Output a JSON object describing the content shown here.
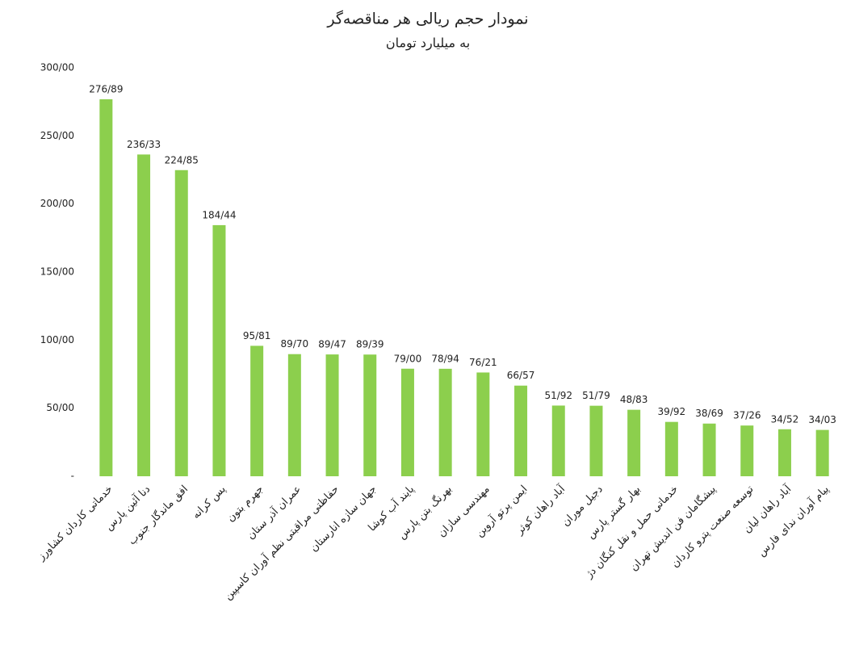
{
  "chart_data": {
    "type": "bar",
    "title": "نمودار حجم ریالی هر مناقصه‌گر",
    "subtitle": "به میلیارد تومان",
    "categories": [
      "خدماتی کاردان کشاورز",
      "دنا آئین پارس",
      "افق ماندگار جنوب",
      "پس کرانه",
      "جهرم بتون",
      "عمران آذر ستان",
      "حفاظتی مراقبتی نظم آوران کاسپین",
      "جهان سازه انارستان",
      "پایند آب کوشا",
      "بهرنگ بتن پارس",
      "مهندسی سازان",
      "ایمن پرتو آروین",
      "آباد راهان کوثر",
      "دجیل موران",
      "بهار گستر پارس",
      "خدماتی حمل و نقل کنگان دژ",
      "پیشگامان فن اندیش تهران",
      "توسعه صنعت پترو کاردان",
      "آباد راهان لیان",
      "پیام آوران ندای فارس"
    ],
    "values": [
      276.89,
      236.33,
      224.85,
      184.44,
      95.81,
      89.7,
      89.47,
      89.39,
      79.0,
      78.94,
      76.21,
      66.57,
      51.92,
      51.79,
      48.83,
      39.92,
      38.69,
      37.26,
      34.52,
      34.03
    ],
    "value_labels": [
      "276/89",
      "236/33",
      "224/85",
      "184/44",
      "95/81",
      "89/70",
      "89/47",
      "89/39",
      "79/00",
      "78/94",
      "76/21",
      "66/57",
      "51/92",
      "51/79",
      "48/83",
      "39/92",
      "38/69",
      "37/26",
      "34/52",
      "34/03"
    ],
    "color": "#8ccf4d",
    "ylim": [
      0,
      300
    ],
    "yticks": [
      {
        "value": 0,
        "label": "-"
      },
      {
        "value": 50,
        "label": "50/00"
      },
      {
        "value": 100,
        "label": "100/00"
      },
      {
        "value": 150,
        "label": "150/00"
      },
      {
        "value": 200,
        "label": "200/00"
      },
      {
        "value": 250,
        "label": "250/00"
      },
      {
        "value": 300,
        "label": "300/00"
      }
    ],
    "grid": false
  }
}
